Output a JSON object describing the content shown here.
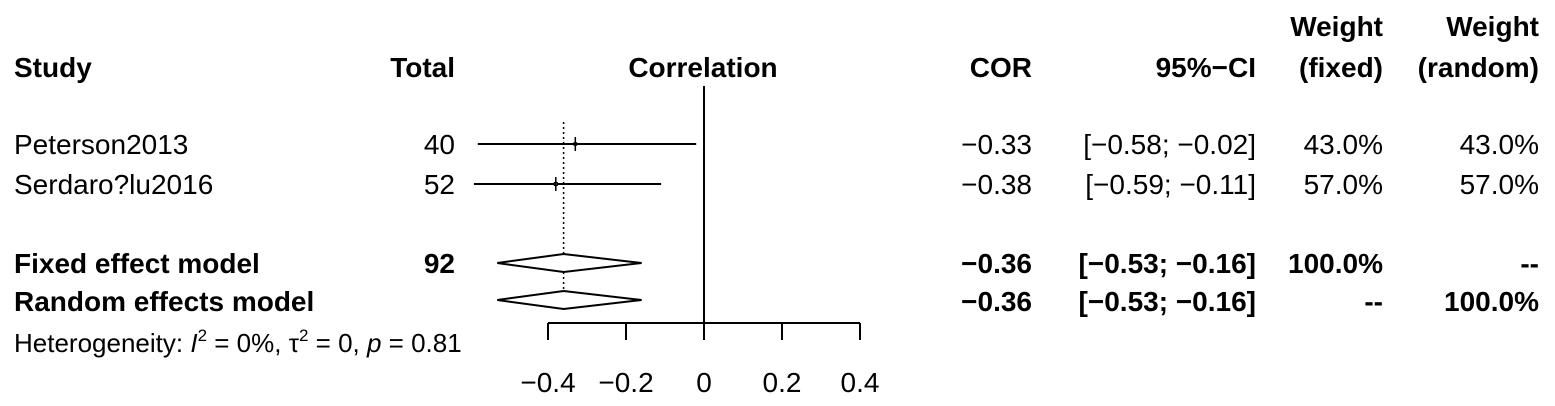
{
  "chart_data": {
    "type": "table",
    "plot_kind": "forest",
    "headers": {
      "study": "Study",
      "total": "Total",
      "effect": "Correlation",
      "cor": "COR",
      "ci": "95%−CI",
      "weight_fixed_line1": "Weight",
      "weight_fixed_line2": "(fixed)",
      "weight_random_line1": "Weight",
      "weight_random_line2": "(random)"
    },
    "studies": [
      {
        "name": "Peterson2013",
        "total": "40",
        "cor_text": "−0.33",
        "ci_text": "[−0.58; −0.02]",
        "w_fixed": "43.0%",
        "w_random": "43.0%",
        "cor": -0.33,
        "lower": -0.58,
        "upper": -0.02,
        "weight": 0.43
      },
      {
        "name": "Serdaro?lu2016",
        "total": "52",
        "cor_text": "−0.38",
        "ci_text": "[−0.59; −0.11]",
        "w_fixed": "57.0%",
        "w_random": "57.0%",
        "cor": -0.38,
        "lower": -0.59,
        "upper": -0.11,
        "weight": 0.57
      }
    ],
    "models": [
      {
        "name": "Fixed effect model",
        "total": "92",
        "cor_text": "−0.36",
        "ci_text": "[−0.53; −0.16]",
        "w_fixed": "100.0%",
        "w_random": "--",
        "cor": -0.36,
        "lower": -0.53,
        "upper": -0.16
      },
      {
        "name": "Random effects model",
        "total": "",
        "cor_text": "−0.36",
        "ci_text": "[−0.53; −0.16]",
        "w_fixed": "--",
        "w_random": "100.0%",
        "cor": -0.36,
        "lower": -0.53,
        "upper": -0.16
      }
    ],
    "heterogeneity": {
      "prefix": "Heterogeneity: ",
      "i_sym": "I",
      "sup2": "2",
      "i_val": " = 0%, ",
      "tau_sym": "τ",
      "tau_val": " = 0, ",
      "p_sym": "p",
      "p_val": " = 0.81"
    },
    "x_axis": {
      "range": [
        -0.4,
        0.4
      ],
      "ticks": [
        -0.4,
        -0.2,
        0,
        0.2,
        0.4
      ],
      "tick_labels": [
        "−0.4",
        "−0.2",
        "0",
        "0.2",
        "0.4"
      ],
      "reference_line": 0
    }
  }
}
